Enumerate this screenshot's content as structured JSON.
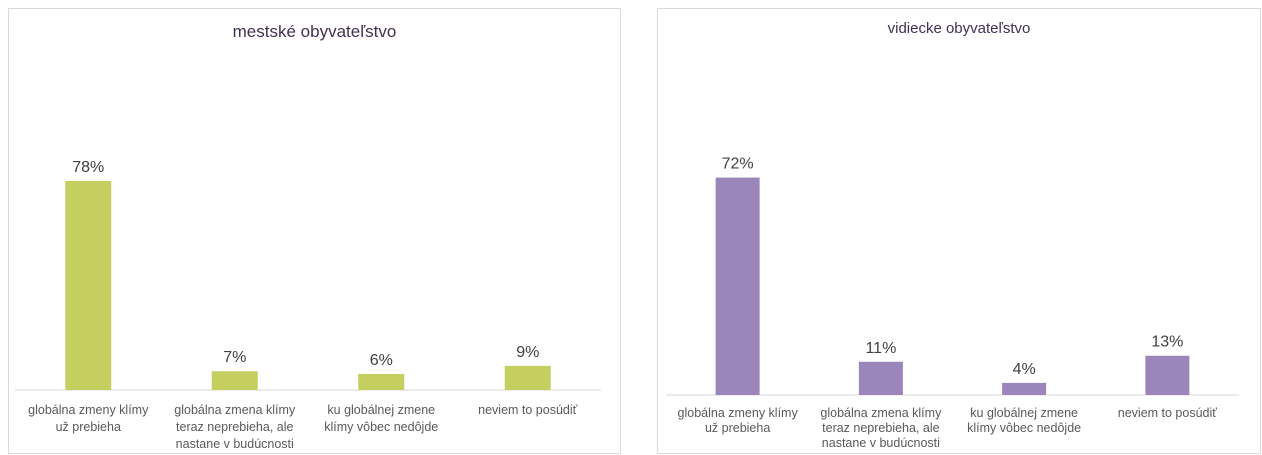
{
  "chart_data": [
    {
      "type": "bar",
      "title": "mestské obyvateľstvo",
      "categories": [
        [
          "globálna zmeny klímy",
          "už prebieha"
        ],
        [
          "globálna zmena klímy",
          "teraz neprebieha, ale",
          "nastane v budúcnosti"
        ],
        [
          "ku globálnej zmene",
          "klímy vôbec nedôjde"
        ],
        [
          "neviem to posúdiť"
        ]
      ],
      "values": [
        78,
        7,
        6,
        9
      ],
      "data_labels": [
        "78%",
        "7%",
        "6%",
        "9%"
      ],
      "unit": "%",
      "color": "#c5cf5f",
      "ylim": [
        0,
        100
      ],
      "grid": false,
      "legend": "none"
    },
    {
      "type": "bar",
      "title": "vidiecke obyvateľstvo",
      "categories": [
        [
          "globálna zmeny klímy",
          "už prebieha"
        ],
        [
          "globálna zmena klímy",
          "teraz neprebieha, ale",
          "nastane v budúcnosti"
        ],
        [
          "ku globálnej zmene",
          "klímy vôbec nedôjde"
        ],
        [
          "neviem to posúdiť"
        ]
      ],
      "values": [
        72,
        11,
        4,
        13
      ],
      "data_labels": [
        "72%",
        "11%",
        "4%",
        "13%"
      ],
      "unit": "%",
      "color": "#9a86bb",
      "ylim": [
        0,
        100
      ],
      "grid": false,
      "legend": "none"
    }
  ]
}
